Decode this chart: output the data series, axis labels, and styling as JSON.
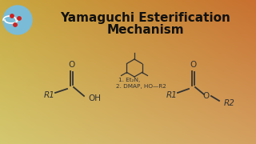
{
  "title_line1": "Yamaguchi Esterification",
  "title_line2": "Mechanism",
  "title_fontsize": 11,
  "bg_top_left": "#d4c870",
  "bg_top_right": "#d4a060",
  "bg_bottom_left": "#c8a840",
  "bg_bottom_right": "#c87030",
  "line_color": "#333333",
  "text_color": "#111111",
  "reagent1": "1. Et₂N,",
  "reagent2": "2. DMAP, HO—R2",
  "logo_bg": "#7abcd8",
  "logo_dot_color": "#cc2222"
}
